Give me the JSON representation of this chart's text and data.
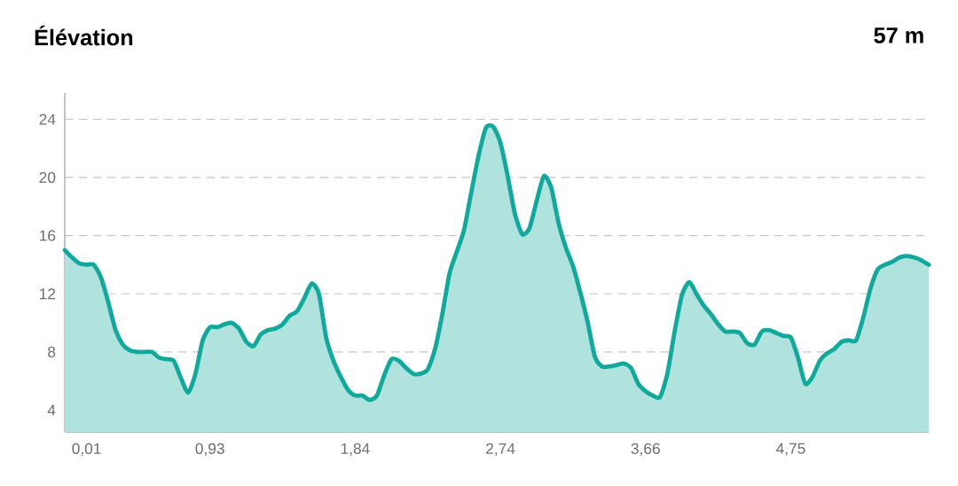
{
  "chart_data": {
    "type": "area",
    "title": "Élévation",
    "annotations": [
      "57 m"
    ],
    "categories": [
      null,
      null,
      null,
      "0,01",
      null,
      null,
      null,
      null,
      null,
      null,
      null,
      null,
      null,
      null,
      null,
      null,
      null,
      null,
      null,
      null,
      "0,93",
      null,
      null,
      null,
      null,
      null,
      null,
      null,
      null,
      null,
      null,
      null,
      null,
      null,
      null,
      null,
      null,
      null,
      null,
      null,
      "1,84",
      null,
      null,
      null,
      null,
      null,
      null,
      null,
      null,
      null,
      null,
      null,
      null,
      null,
      null,
      null,
      null,
      null,
      null,
      null,
      "2,74",
      null,
      null,
      null,
      null,
      null,
      null,
      null,
      null,
      null,
      null,
      null,
      null,
      null,
      null,
      null,
      null,
      null,
      null,
      null,
      "3,66",
      null,
      null,
      null,
      null,
      null,
      null,
      null,
      null,
      null,
      null,
      null,
      null,
      null,
      null,
      null,
      null,
      null,
      null,
      null,
      "4,75",
      null,
      null,
      null,
      null,
      null,
      null,
      null,
      null,
      null,
      null,
      null,
      null,
      null,
      null,
      null,
      null,
      null,
      null,
      null
    ],
    "values": [
      15.0,
      14.5,
      14.1,
      14.0,
      14.0,
      13.1,
      11.4,
      9.5,
      8.5,
      8.1,
      8.0,
      8.0,
      8.0,
      7.6,
      7.5,
      7.4,
      6.2,
      5.2,
      6.5,
      8.8,
      9.7,
      9.7,
      9.9,
      10.0,
      9.6,
      8.7,
      8.4,
      9.2,
      9.5,
      9.6,
      9.9,
      10.5,
      10.8,
      11.7,
      12.7,
      12.0,
      9.0,
      7.4,
      6.3,
      5.4,
      5.0,
      5.0,
      4.7,
      5.0,
      6.4,
      7.5,
      7.4,
      6.9,
      6.5,
      6.5,
      6.8,
      8.2,
      10.6,
      13.4,
      14.9,
      16.4,
      19.0,
      21.5,
      23.4,
      23.5,
      22.4,
      20.1,
      17.5,
      16.1,
      16.5,
      18.4,
      20.1,
      19.3,
      16.9,
      15.2,
      13.9,
      12.1,
      10.1,
      7.7,
      7.0,
      7.0,
      7.1,
      7.2,
      6.9,
      5.8,
      5.3,
      5.0,
      4.9,
      6.5,
      9.4,
      11.9,
      12.8,
      12.0,
      11.2,
      10.6,
      9.9,
      9.4,
      9.4,
      9.3,
      8.6,
      8.5,
      9.4,
      9.5,
      9.3,
      9.1,
      9.0,
      7.6,
      5.8,
      6.3,
      7.4,
      7.9,
      8.2,
      8.7,
      8.8,
      8.8,
      10.4,
      12.4,
      13.7,
      14.0,
      14.2,
      14.5,
      14.6,
      14.5,
      14.3,
      14.0
    ],
    "color": "#12a89c",
    "ylim": [
      2.5,
      25.8
    ],
    "yticks": [
      4,
      8,
      12,
      16,
      20,
      24
    ],
    "grid": "y"
  }
}
